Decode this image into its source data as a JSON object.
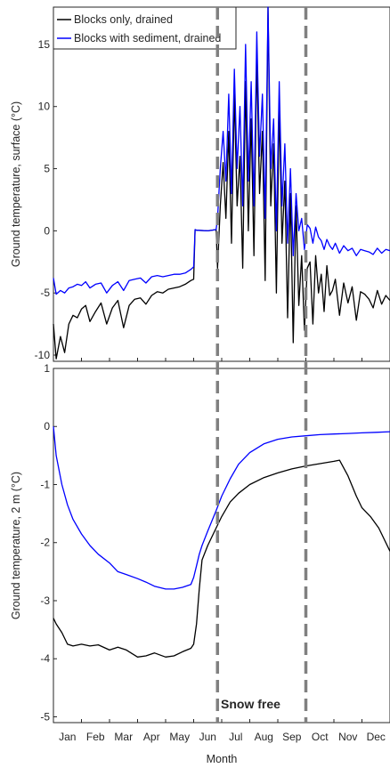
{
  "chart_data": [
    {
      "type": "line",
      "ylabel": "Ground temperature, surface (°C)",
      "ylim": [
        -10.5,
        18
      ],
      "yticks": [
        -10,
        -5,
        0,
        5,
        10,
        15
      ],
      "ytick_labels": [
        "-10",
        "-5",
        "0",
        "5",
        "10",
        "15"
      ],
      "xlim": [
        0,
        12
      ],
      "grid": false,
      "legend": {
        "placement": "top-left"
      },
      "series": [
        {
          "name": "Blocks only, drained",
          "color": "#000000",
          "x": [
            0,
            0.1,
            0.25,
            0.4,
            0.55,
            0.7,
            0.85,
            1.0,
            1.15,
            1.3,
            1.5,
            1.7,
            1.9,
            2.1,
            2.3,
            2.5,
            2.7,
            2.9,
            3.1,
            3.3,
            3.5,
            3.7,
            3.9,
            4.1,
            4.3,
            4.5,
            4.7,
            4.9,
            5.0,
            5.05,
            5.1,
            5.5,
            5.8,
            5.85,
            5.95,
            6.05,
            6.15,
            6.25,
            6.35,
            6.45,
            6.55,
            6.65,
            6.75,
            6.85,
            6.95,
            7.05,
            7.15,
            7.25,
            7.35,
            7.45,
            7.55,
            7.65,
            7.75,
            7.85,
            7.95,
            8.05,
            8.15,
            8.25,
            8.35,
            8.45,
            8.55,
            8.65,
            8.75,
            8.85,
            8.95,
            9.05,
            9.15,
            9.25,
            9.35,
            9.45,
            9.55,
            9.65,
            9.75,
            9.85,
            9.95,
            10.05,
            10.2,
            10.35,
            10.5,
            10.65,
            10.8,
            10.95,
            11.1,
            11.25,
            11.4,
            11.55,
            11.7,
            11.85,
            12.0
          ],
          "y": [
            -7.5,
            -10.3,
            -8.5,
            -9.8,
            -7.5,
            -6.8,
            -7.0,
            -6.3,
            -6.0,
            -7.3,
            -6.5,
            -5.8,
            -7.5,
            -6.2,
            -5.6,
            -7.8,
            -6.0,
            -5.5,
            -5.4,
            -5.9,
            -5.2,
            -4.9,
            -5.0,
            -4.7,
            -4.6,
            -4.5,
            -4.3,
            -4.0,
            -3.9,
            0.1,
            0.05,
            0.0,
            0.1,
            -3.0,
            2.0,
            5.5,
            1.0,
            8.0,
            -1.0,
            11.0,
            2.0,
            6.0,
            -3.0,
            12.0,
            0.0,
            9.0,
            -2.0,
            14.0,
            3.0,
            8.0,
            -4.0,
            18.0,
            2.0,
            7.0,
            -5.0,
            10.0,
            -1.0,
            4.0,
            -7.0,
            3.0,
            -9.0,
            2.0,
            -6.0,
            -2.0,
            -8.0,
            -3.0,
            -2.5,
            -7.5,
            -2.0,
            -5.0,
            -3.5,
            -6.5,
            -2.8,
            -5.2,
            -4.8,
            -3.9,
            -6.8,
            -4.2,
            -5.8,
            -4.5,
            -7.2,
            -4.9,
            -5.1,
            -5.5,
            -6.2,
            -4.8,
            -5.9,
            -5.2,
            -5.6
          ]
        },
        {
          "name": "Blocks with sediment, drained",
          "color": "#0000ff",
          "x": [
            0,
            0.1,
            0.25,
            0.4,
            0.55,
            0.7,
            0.85,
            1.0,
            1.15,
            1.3,
            1.5,
            1.7,
            1.9,
            2.1,
            2.3,
            2.5,
            2.7,
            2.9,
            3.1,
            3.3,
            3.5,
            3.7,
            3.9,
            4.1,
            4.3,
            4.5,
            4.7,
            4.9,
            5.0,
            5.05,
            5.1,
            5.5,
            5.8,
            5.85,
            5.95,
            6.05,
            6.15,
            6.25,
            6.35,
            6.45,
            6.55,
            6.65,
            6.75,
            6.85,
            6.95,
            7.05,
            7.15,
            7.25,
            7.35,
            7.45,
            7.55,
            7.65,
            7.75,
            7.85,
            7.95,
            8.05,
            8.15,
            8.25,
            8.35,
            8.45,
            8.55,
            8.65,
            8.75,
            8.85,
            8.95,
            9.05,
            9.15,
            9.25,
            9.35,
            9.45,
            9.55,
            9.65,
            9.75,
            9.85,
            9.95,
            10.05,
            10.2,
            10.35,
            10.5,
            10.65,
            10.8,
            10.95,
            11.1,
            11.25,
            11.4,
            11.55,
            11.7,
            11.85,
            12.0
          ],
          "y": [
            -3.8,
            -5.1,
            -4.8,
            -5.0,
            -4.6,
            -4.5,
            -4.3,
            -4.4,
            -4.1,
            -4.6,
            -4.3,
            -4.2,
            -5.0,
            -4.4,
            -4.1,
            -4.8,
            -4.0,
            -3.9,
            -3.8,
            -4.2,
            -3.7,
            -3.6,
            -3.7,
            -3.6,
            -3.5,
            -3.5,
            -3.4,
            -3.1,
            -2.9,
            0.1,
            0.05,
            0.0,
            0.1,
            1.0,
            5.0,
            8.0,
            4.0,
            11.0,
            3.0,
            13.0,
            5.0,
            10.0,
            2.0,
            15.0,
            4.0,
            12.0,
            2.0,
            16.0,
            6.0,
            11.0,
            1.0,
            18.0,
            5.0,
            9.0,
            0.0,
            12.0,
            2.0,
            7.0,
            -1.0,
            5.0,
            -2.0,
            3.0,
            0.0,
            1.0,
            -1.5,
            0.5,
            0.2,
            -1.0,
            0.3,
            -0.5,
            -0.8,
            -1.5,
            -0.7,
            -1.2,
            -1.5,
            -1.0,
            -1.8,
            -1.2,
            -1.6,
            -1.4,
            -2.0,
            -1.5,
            -1.6,
            -1.7,
            -1.9,
            -1.4,
            -1.8,
            -1.5,
            -1.6
          ]
        }
      ]
    },
    {
      "type": "line",
      "xlabel": "Month",
      "ylabel": "Ground temperature, 2 m (°C)",
      "ylim": [
        -5.1,
        1
      ],
      "yticks": [
        -5,
        -4,
        -3,
        -2,
        -1,
        0,
        1
      ],
      "ytick_labels": [
        "-5",
        "-4",
        "-3",
        "-2",
        "-1",
        "0",
        "1"
      ],
      "xlim": [
        0,
        12
      ],
      "categories": [
        "Jan",
        "Feb",
        "Mar",
        "Apr",
        "May",
        "Jun",
        "Jul",
        "Aug",
        "Sep",
        "Oct",
        "Nov",
        "Dec"
      ],
      "grid": false,
      "series": [
        {
          "name": "Blocks only, drained",
          "color": "#000000",
          "x": [
            0,
            0.1,
            0.3,
            0.5,
            0.7,
            1.0,
            1.3,
            1.6,
            2.0,
            2.3,
            2.6,
            3.0,
            3.3,
            3.6,
            4.0,
            4.3,
            4.6,
            4.9,
            5.0,
            5.1,
            5.2,
            5.3,
            5.5,
            5.8,
            6.0,
            6.3,
            6.6,
            7.0,
            7.5,
            8.0,
            8.5,
            9.0,
            9.5,
            10.0,
            10.2,
            10.5,
            10.8,
            11.0,
            11.3,
            11.6,
            12.0
          ],
          "y": [
            -3.3,
            -3.4,
            -3.55,
            -3.75,
            -3.78,
            -3.75,
            -3.78,
            -3.76,
            -3.85,
            -3.8,
            -3.85,
            -3.97,
            -3.95,
            -3.9,
            -3.97,
            -3.95,
            -3.88,
            -3.82,
            -3.75,
            -3.4,
            -2.8,
            -2.3,
            -2.05,
            -1.75,
            -1.55,
            -1.3,
            -1.15,
            -1.0,
            -0.88,
            -0.8,
            -0.73,
            -0.68,
            -0.64,
            -0.6,
            -0.58,
            -0.85,
            -1.2,
            -1.4,
            -1.55,
            -1.75,
            -2.15
          ]
        },
        {
          "name": "Blocks with sediment, drained",
          "color": "#0000ff",
          "x": [
            0,
            0.1,
            0.3,
            0.5,
            0.7,
            1.0,
            1.3,
            1.6,
            2.0,
            2.3,
            2.6,
            3.0,
            3.3,
            3.6,
            4.0,
            4.3,
            4.6,
            4.9,
            5.0,
            5.1,
            5.2,
            5.3,
            5.5,
            5.8,
            6.0,
            6.3,
            6.6,
            7.0,
            7.5,
            8.0,
            8.5,
            9.0,
            9.5,
            10.0,
            10.5,
            11.0,
            11.5,
            12.0
          ],
          "y": [
            0.0,
            -0.5,
            -1.0,
            -1.35,
            -1.6,
            -1.85,
            -2.05,
            -2.2,
            -2.35,
            -2.5,
            -2.55,
            -2.62,
            -2.68,
            -2.75,
            -2.8,
            -2.8,
            -2.77,
            -2.72,
            -2.6,
            -2.4,
            -2.2,
            -2.05,
            -1.8,
            -1.45,
            -1.2,
            -0.9,
            -0.65,
            -0.45,
            -0.3,
            -0.22,
            -0.18,
            -0.16,
            -0.14,
            -0.13,
            -0.12,
            -0.11,
            -0.1,
            -0.09
          ]
        }
      ],
      "annotation": "Snow free"
    }
  ],
  "snow_free_start_month": 5.85,
  "snow_free_end_month": 9.0
}
